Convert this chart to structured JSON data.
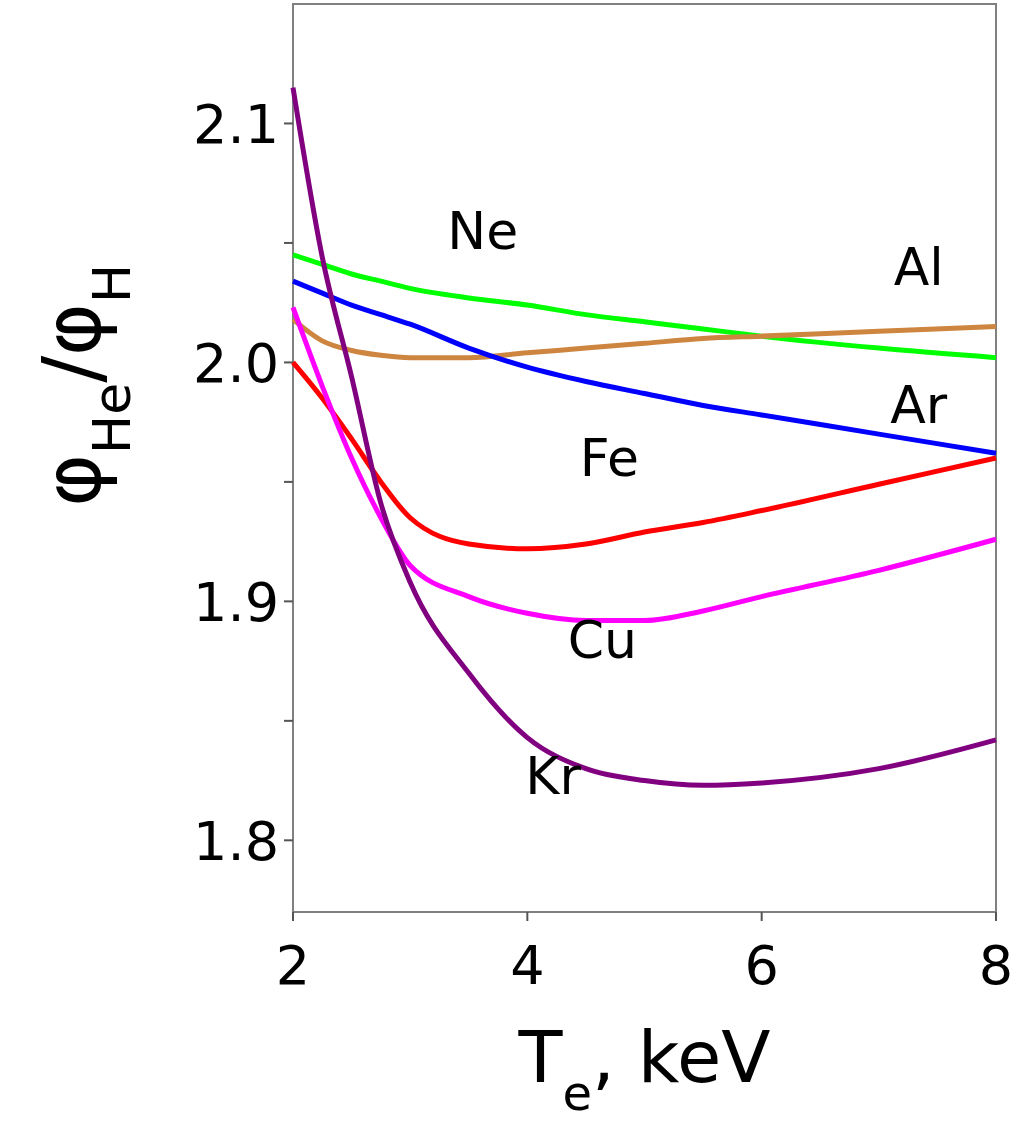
{
  "chart_data": {
    "type": "line",
    "xlabel": "T$_{e}$, keV",
    "ylabel": "φ$_{He}$/φ$_{H}$",
    "x": [
      2,
      2.25,
      2.5,
      2.75,
      3,
      3.5,
      4,
      4.5,
      5,
      5.5,
      6,
      7,
      8
    ],
    "xlim": [
      2,
      8
    ],
    "xticks": [
      2,
      4,
      6,
      8
    ],
    "ylim": [
      1.77,
      2.15
    ],
    "yticks": [
      1.8,
      {
        "value": 1.85,
        "label": null
      },
      1.9,
      {
        "value": 1.95,
        "label": null
      },
      {
        "value": 2.0,
        "label": "2.0"
      },
      {
        "value": 2.05,
        "label": null
      },
      2.1
    ],
    "grid": false,
    "marker": "none",
    "line_style": "solid",
    "series": [
      {
        "name": "Ne",
        "color": "#00ff00",
        "values": [
          2.045,
          2.041,
          2.037,
          2.034,
          2.031,
          2.027,
          2.024,
          2.02,
          2.017,
          2.014,
          2.011,
          2.006,
          2.002
        ]
      },
      {
        "name": "Al",
        "color": "#cd853f",
        "values": [
          2.018,
          2.009,
          2.005,
          2.003,
          2.002,
          2.002,
          2.004,
          2.006,
          2.008,
          2.01,
          2.011,
          2.013,
          2.015
        ]
      },
      {
        "name": "Ar",
        "color": "#0000ff",
        "values": [
          2.034,
          2.029,
          2.024,
          2.02,
          2.016,
          2.006,
          1.998,
          1.992,
          1.987,
          1.982,
          1.978,
          1.97,
          1.962
        ]
      },
      {
        "name": "Fe",
        "color": "#ff0000",
        "values": [
          2.0,
          1.985,
          1.968,
          1.95,
          1.935,
          1.924,
          1.922,
          1.924,
          1.929,
          1.933,
          1.938,
          1.949,
          1.96
        ]
      },
      {
        "name": "Cu",
        "color": "#ff00ff",
        "values": [
          2.023,
          1.99,
          1.96,
          1.935,
          1.915,
          1.902,
          1.895,
          1.892,
          1.892,
          1.896,
          1.902,
          1.913,
          1.926
        ]
      },
      {
        "name": "Kr",
        "color": "#800080",
        "values": [
          2.115,
          2.044,
          1.994,
          1.941,
          1.908,
          1.87,
          1.843,
          1.83,
          1.825,
          1.823,
          1.824,
          1.83,
          1.842
        ]
      }
    ]
  }
}
